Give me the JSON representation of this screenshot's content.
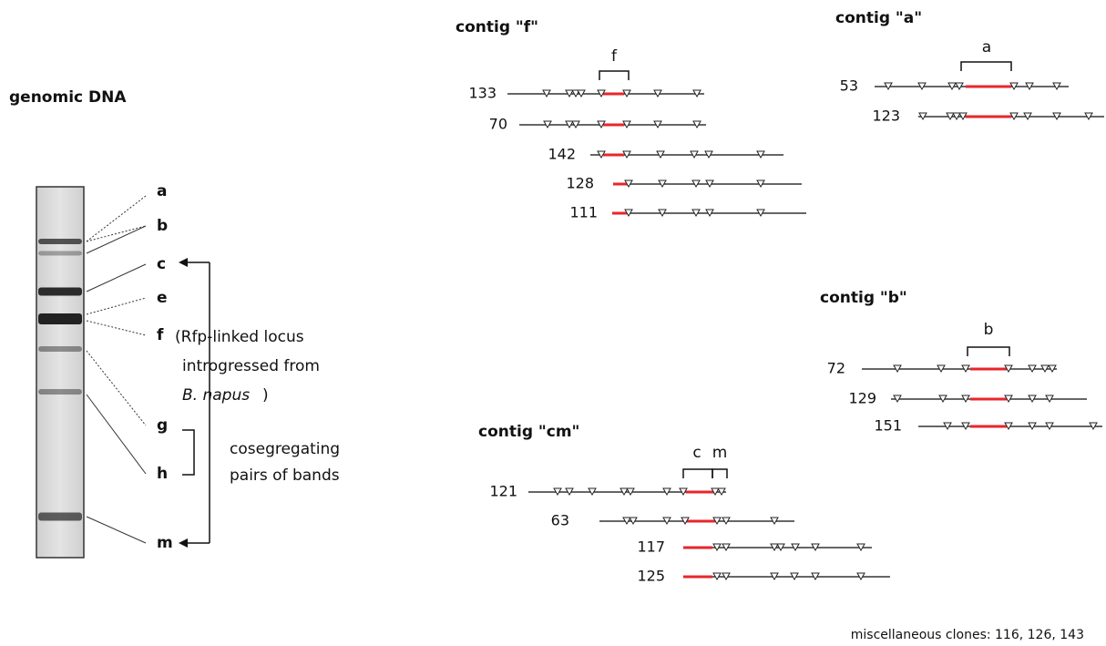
{
  "gel": {
    "title": "genomic DNA",
    "bands": [
      "a",
      "b",
      "c",
      "e",
      "f",
      "g",
      "h",
      "m"
    ],
    "note": [
      "(Rfp-linked locus",
      "introgressed from",
      "B. napus",
      ")"
    ],
    "pairs_label": [
      "cosegregating",
      "pairs of bands"
    ]
  },
  "contigs": [
    {
      "title": "contig \"f\"",
      "markers": [
        "f"
      ],
      "clones": [
        "133",
        "70",
        "142",
        "128",
        "111"
      ]
    },
    {
      "title": "contig \"a\"",
      "markers": [
        "a"
      ],
      "clones": [
        "53",
        "123"
      ]
    },
    {
      "title": "contig \"b\"",
      "markers": [
        "b"
      ],
      "clones": [
        "72",
        "129",
        "151"
      ]
    },
    {
      "title": "contig \"cm\"",
      "markers": [
        "c",
        "m"
      ],
      "clones": [
        "121",
        "63",
        "117",
        "125"
      ]
    }
  ],
  "misc": "miscellaneous clones: 116, 126, 143"
}
